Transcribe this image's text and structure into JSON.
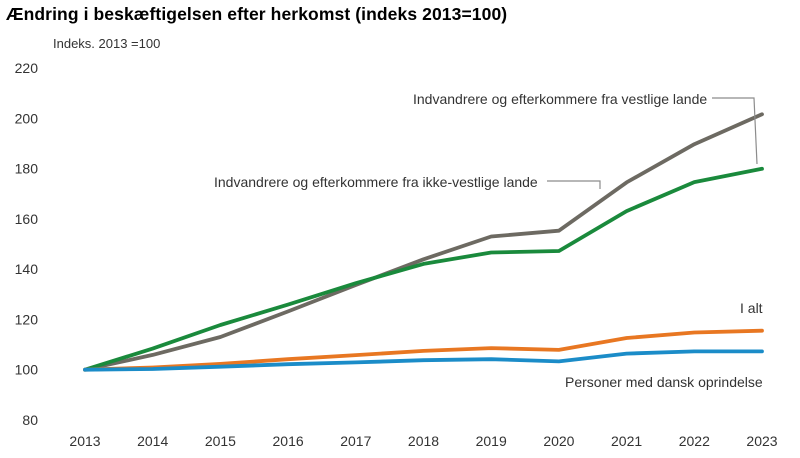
{
  "title": "Ændring i beskæftigelsen efter herkomst (indeks 2013=100)",
  "chart_data": {
    "type": "line",
    "title": "Ændring i beskæftigelsen efter herkomst (indeks 2013=100)",
    "unit_label": "Indeks. 2013 =100",
    "x": [
      "2013",
      "2014",
      "2015",
      "2016",
      "2017",
      "2018",
      "2019",
      "2020",
      "2021",
      "2022",
      "2023"
    ],
    "ylim": [
      80,
      220
    ],
    "yticks": [
      80,
      100,
      120,
      140,
      160,
      180,
      200,
      220
    ],
    "grid": false,
    "legend": "inline annotations",
    "series": [
      {
        "name": "Indvandrere og  efterkommere fra vestlige lande",
        "color": "#6d6a62",
        "values": [
          100,
          105.9,
          113,
          123.2,
          133.7,
          143.9,
          153,
          155.3,
          174.5,
          189.7,
          201.6
        ]
      },
      {
        "name": "Indvandrere og efterkommere fra ikke-vestlige lande",
        "color": "#1a8a3c",
        "values": [
          100,
          108.4,
          117.8,
          125.9,
          134.4,
          142.1,
          146.6,
          147.2,
          163.1,
          174.6,
          179.9
        ]
      },
      {
        "name": "I alt",
        "color": "#e87722",
        "values": [
          100,
          100.9,
          102.3,
          104.2,
          105.8,
          107.5,
          108.6,
          107.9,
          112.6,
          114.8,
          115.5
        ]
      },
      {
        "name": "Personer med dansk oprindelse",
        "color": "#1b8cc8",
        "values": [
          100,
          100.3,
          101.2,
          102.2,
          102.9,
          103.8,
          104.2,
          103.3,
          106.4,
          107.3,
          107.3
        ]
      }
    ]
  }
}
